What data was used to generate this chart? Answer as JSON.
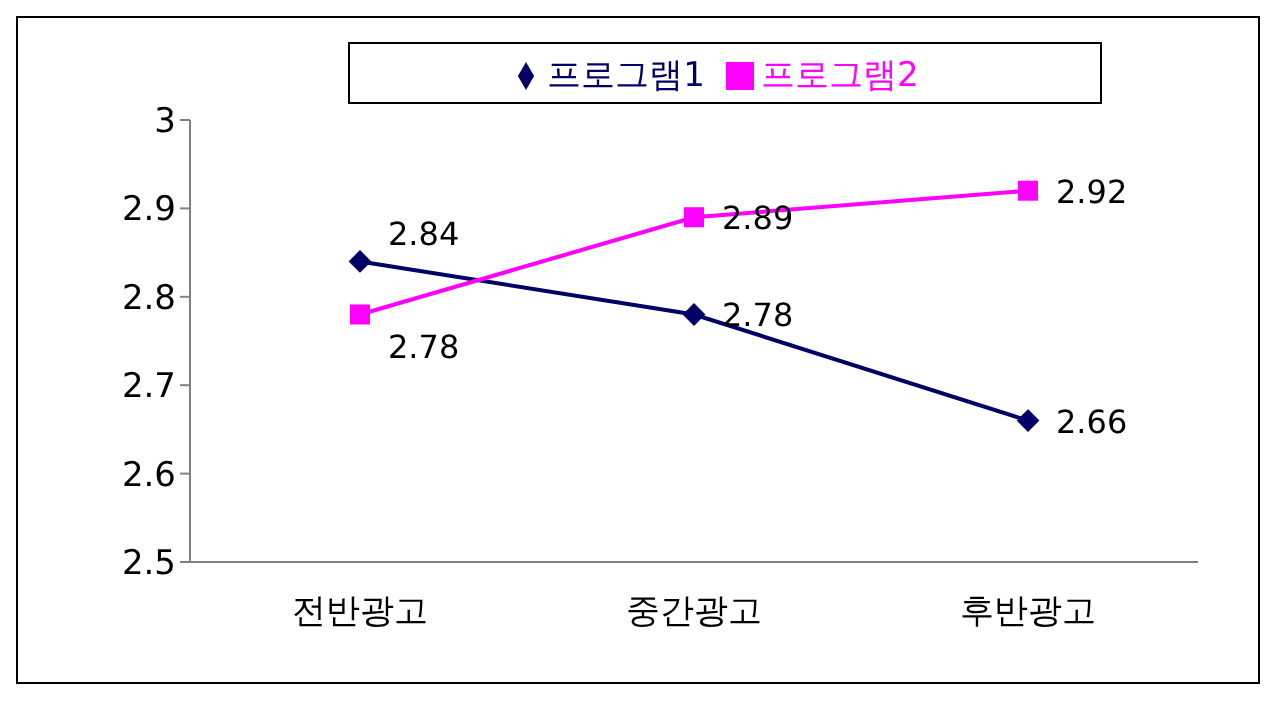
{
  "chart_data": {
    "type": "line",
    "categories": [
      "전반광고",
      "중간광고",
      "후반광고"
    ],
    "series": [
      {
        "name": "프로그램1",
        "color": "#000066",
        "marker": "diamond",
        "values": [
          2.84,
          2.78,
          2.66
        ]
      },
      {
        "name": "프로그램2",
        "color": "#ff00ff",
        "marker": "square",
        "values": [
          2.78,
          2.89,
          2.92
        ]
      }
    ],
    "ylim": [
      2.5,
      3
    ],
    "yticks": [
      2.5,
      2.6,
      2.7,
      2.8,
      2.9,
      3
    ],
    "grid": false,
    "legend": "top",
    "data_labels": true
  }
}
